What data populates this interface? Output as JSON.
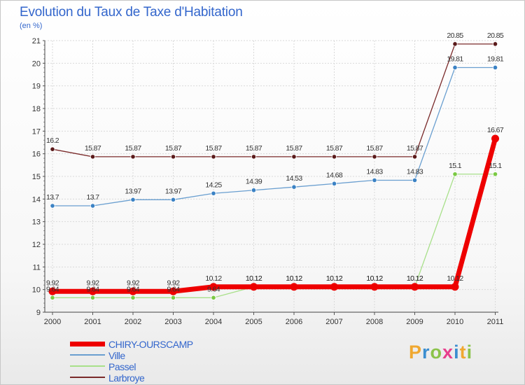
{
  "title": "Evolution du Taux de Taxe d'Habitation",
  "unit": "(en %)",
  "logo": {
    "text": "Proxiti",
    "letters": [
      "P",
      "r",
      "o",
      "x",
      "i",
      "t",
      "i"
    ],
    "colors": [
      "#f0a830",
      "#3b8ed0",
      "#8bc34a",
      "#e83e8c",
      "#3b8ed0",
      "#f0a830",
      "#8bc34a"
    ]
  },
  "chart_data": {
    "type": "line",
    "title": "Evolution du Taux de Taxe d'Habitation",
    "ylabel": "(en %)",
    "xlabel": "",
    "x": [
      "2000",
      "2001",
      "2002",
      "2003",
      "2004",
      "2005",
      "2006",
      "2007",
      "2008",
      "2009",
      "2010",
      "2011"
    ],
    "ylim": [
      9,
      21
    ],
    "yticks": [
      "9",
      "10",
      "11",
      "12",
      "13",
      "14",
      "15",
      "16",
      "17",
      "18",
      "19",
      "20",
      "21"
    ],
    "grid": true,
    "legend_position": "bottom-left",
    "series": [
      {
        "name": "Larbroye",
        "color": "#7a2a2a",
        "marker": "#5a1a1a",
        "width": 1.3,
        "radius": 3.2,
        "values": [
          16.2,
          15.87,
          15.87,
          15.87,
          15.87,
          15.87,
          15.87,
          15.87,
          15.87,
          15.87,
          20.85,
          20.85
        ],
        "labels": [
          "16.2",
          "15.87",
          "15.87",
          "15.87",
          "15.87",
          "15.87",
          "15.87",
          "15.87",
          "15.87",
          "15.87",
          "20.85",
          "20.85"
        ]
      },
      {
        "name": "Ville",
        "color": "#6a9fd0",
        "marker": "#3b82c4",
        "width": 1.3,
        "radius": 3.2,
        "values": [
          13.7,
          13.7,
          13.97,
          13.97,
          14.25,
          14.39,
          14.53,
          14.68,
          14.83,
          14.83,
          19.81,
          19.81
        ],
        "labels": [
          "13.7",
          "13.7",
          "13.97",
          "13.97",
          "14.25",
          "14.39",
          "14.53",
          "14.68",
          "14.83",
          "14.83",
          "19.81",
          "19.81"
        ]
      },
      {
        "name": "Passel",
        "color": "#a8e08a",
        "marker": "#7ac943",
        "width": 1.3,
        "radius": 3.2,
        "values": [
          9.64,
          9.64,
          9.64,
          9.64,
          9.64,
          10.12,
          10.12,
          10.12,
          10.12,
          10.12,
          15.1,
          15.1
        ],
        "labels": [
          "9.64",
          "9.64",
          "9.64",
          "9.64",
          "9.64",
          "10.12",
          "10.12",
          "10.12",
          "10.12",
          "10.12",
          "15.1",
          "15.1"
        ]
      },
      {
        "name": "CHIRY-OURSCAMP",
        "color": "#ee0000",
        "marker": "#ee0000",
        "width": 7,
        "radius": 5.5,
        "values": [
          9.92,
          9.92,
          9.92,
          9.92,
          10.12,
          10.12,
          10.12,
          10.12,
          10.12,
          10.12,
          10.12,
          16.67
        ],
        "labels": [
          "9.92",
          "9.92",
          "9.92",
          "9.92",
          "10.12",
          "10.12",
          "10.12",
          "10.12",
          "10.12",
          "10.12",
          "10.12",
          "16.67"
        ]
      }
    ]
  },
  "legend": [
    {
      "name": "CHIRY-OURSCAMP",
      "color": "#ee0000",
      "thickness": 7
    },
    {
      "name": "Ville",
      "color": "#6a9fd0",
      "thickness": 2
    },
    {
      "name": "Passel",
      "color": "#a8e08a",
      "thickness": 2
    },
    {
      "name": "Larbroye",
      "color": "#7a2a2a",
      "thickness": 2
    }
  ]
}
